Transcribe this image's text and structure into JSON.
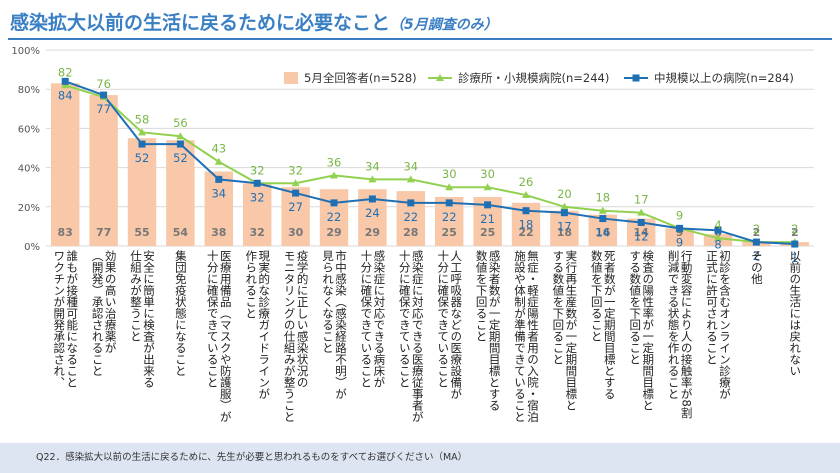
{
  "title": {
    "main": "感染拡大以前の生活に戻るために必要なこと",
    "sub": "（5月調査のみ）"
  },
  "footnote": "Q22．感染拡大以前の生活に戻るために、先生が必要と思われるものをすべてお選びください（MA）",
  "colors": {
    "bar": "#f9c8a8",
    "clinic": "#92d050",
    "hospital": "#1f6fb5",
    "title": "#3a7fc4"
  },
  "chart_data": {
    "type": "bar",
    "ylim": [
      0,
      100
    ],
    "yticks": [
      "0%",
      "20%",
      "40%",
      "60%",
      "80%",
      "100%"
    ],
    "legend_position": "top-right",
    "categories": [
      "誰もが接種可能になること\nワクチンが開発承認され、",
      "効果の高い治療薬が\n（開発）承認されること",
      "安全に簡単に検査が出来る\n仕組みが整うこと",
      "集団免疫状態になること",
      "医療用備品（マスクや防護服）が\n十分に確保できていること",
      "現実的な診療ガイドラインが\n作られること",
      "疫学的に正しい感染状況の\nモニタリングの仕組みが整うこと",
      "市中感染（感染経路不明）が\n見られなくなること",
      "感染症に対応できる病床が\n十分に確保できていること",
      "感染症に対応できる医療従事者が\n十分に確保できていること",
      "人工呼吸器などの医療設備が\n十分に確保できていること",
      "感染者数が一定期間目標とする\n数値を下回ること",
      "無症・軽症陽性者用の入院・宿泊\n施設や体制が準備できていること",
      "実行再生産数が一定期間目標と\nする数値を下回ること",
      "死者数が一定期間目標とする\n数値を下回ること",
      "検査の陽性率が一定期間目標と\nする数値を下回ること",
      "行動変容により人の接触率が8割\n削減できる状態を作れること",
      "初診を含むオンライン診療が\n正式に許可されること",
      "その他",
      "以前の生活には戻れない"
    ],
    "series": [
      {
        "name": "5月全回答者(n=528)",
        "type": "bar",
        "values": [
          83,
          77,
          55,
          54,
          38,
          32,
          30,
          29,
          29,
          28,
          25,
          25,
          22,
          18,
          16,
          14,
          9,
          6,
          2,
          2
        ]
      },
      {
        "name": "診療所・小規模病院(n=244)",
        "type": "line",
        "values": [
          82,
          76,
          58,
          56,
          43,
          32,
          32,
          36,
          34,
          34,
          30,
          30,
          26,
          20,
          18,
          17,
          9,
          4,
          2,
          2
        ]
      },
      {
        "name": "中規模以上の病院(n=284)",
        "type": "line",
        "values": [
          84,
          77,
          52,
          52,
          34,
          32,
          27,
          22,
          24,
          22,
          22,
          21,
          18,
          17,
          14,
          12,
          9,
          8,
          2,
          1
        ]
      }
    ]
  }
}
